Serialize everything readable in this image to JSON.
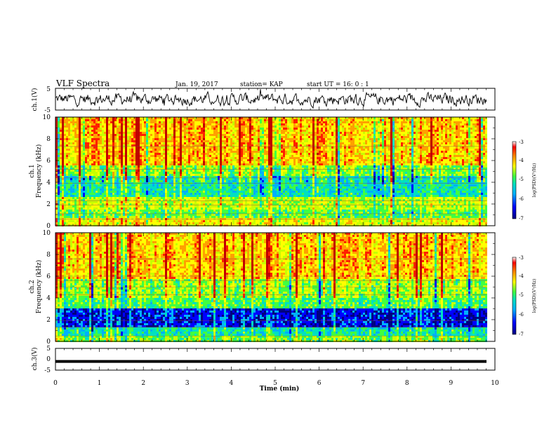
{
  "header": {
    "title": "VLF Spectra",
    "date": "Jan. 19, 2017",
    "station": "station= KAP",
    "start": "start  UT =   16: 0  : 1"
  },
  "colors": {
    "spectrum": [
      "#000080",
      "#0000ff",
      "#00b0ff",
      "#00e0c0",
      "#40ff40",
      "#c8ff00",
      "#ffff00",
      "#ffa000",
      "#ff2000",
      "#c00000"
    ],
    "trace": "#000000",
    "background": "#ffffff"
  },
  "chart_data": [
    {
      "type": "line",
      "ylabel": "ch.1(V)",
      "ylim": [
        -5,
        5
      ],
      "yticks": [
        "5",
        "-5"
      ],
      "xlim": [
        0,
        10
      ],
      "description_of_series": "noisy voltage trace between about -3 and +3 V"
    },
    {
      "type": "heatmap",
      "ylabel_top": "ch.1",
      "ylabel": "Frequency (kHz)",
      "ylim": [
        0,
        10
      ],
      "yticks": [
        "0",
        "2",
        "4",
        "6",
        "8",
        "10"
      ],
      "xlim": [
        0,
        10
      ],
      "colorbar": {
        "label": "log(PSD)(V²/Hz)",
        "range": [
          -7,
          -3
        ],
        "ticks": [
          "-3",
          "-4",
          "-5",
          "-6",
          "-7"
        ]
      }
    },
    {
      "type": "heatmap",
      "ylabel_top": "ch.2",
      "ylabel": "Frequency (kHz)",
      "ylim": [
        0,
        10
      ],
      "yticks": [
        "0",
        "2",
        "4",
        "6",
        "8",
        "10"
      ],
      "xlim": [
        0,
        10
      ],
      "colorbar": {
        "label": "log(PSD)(V²/Hz)",
        "range": [
          -7,
          -3
        ],
        "ticks": [
          "-3",
          "-4",
          "-5",
          "-6",
          "-7"
        ]
      }
    },
    {
      "type": "line",
      "ylabel": "ch.3(V)",
      "ylim": [
        -5,
        5
      ],
      "yticks": [
        "5",
        "0",
        "-5"
      ],
      "xlim": [
        0,
        10
      ],
      "constant_value": -1
    }
  ],
  "xaxis": {
    "label": "Time  (min)",
    "ticks": [
      "0",
      "1",
      "2",
      "3",
      "4",
      "5",
      "6",
      "7",
      "8",
      "9",
      "10"
    ]
  }
}
